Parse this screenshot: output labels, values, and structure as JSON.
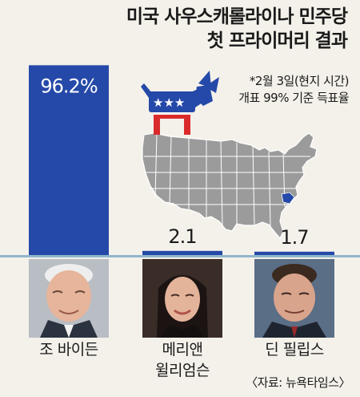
{
  "title_line1": "미국 사우스캐롤라이나 민주당",
  "title_line2": "첫 프라이머리 결과",
  "note_line1": "*2월 3일(현지 시간)",
  "note_line2": "개표 99% 기준 득표율",
  "source": "〈자료: 뉴욕타임스〉",
  "colors": {
    "bar": "#2549a8",
    "map": "#9b9b9b",
    "highlight": "#2549a8",
    "donkey": "#2549a8",
    "donkey_red": "#d92b2b",
    "baseline": "#8fb7cc"
  },
  "chart_data": {
    "type": "bar",
    "categories": [
      "조 바이든",
      "메리앤 윌리엄슨",
      "딘 필립스"
    ],
    "values": [
      96.2,
      2.1,
      1.7
    ],
    "value_labels": [
      "96.2%",
      "2.1",
      "1.7"
    ],
    "ylim": [
      0,
      100
    ]
  },
  "candidates": [
    {
      "name_lines": [
        "조 바이든"
      ],
      "photo_icon": "biden-photo"
    },
    {
      "name_lines": [
        "메리앤",
        "윌리엄슨"
      ],
      "photo_icon": "williamson-photo"
    },
    {
      "name_lines": [
        "딘 필립스"
      ],
      "photo_icon": "phillips-photo"
    }
  ]
}
